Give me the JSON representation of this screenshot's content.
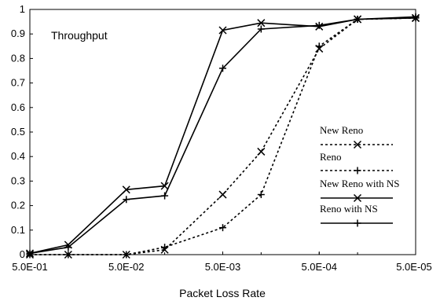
{
  "chart_data": {
    "type": "line",
    "title": "Throughput",
    "xlabel": "Packet Loss Rate",
    "ylabel": "",
    "x_ticks": [
      "5.0E-01",
      "5.0E-02",
      "5.0E-03",
      "5.0E-04",
      "5.0E-05"
    ],
    "y_ticks": [
      "0",
      "0.1",
      "0.2",
      "0.3",
      "0.4",
      "0.5",
      "0.6",
      "0.7",
      "0.8",
      "0.9",
      "1"
    ],
    "x_scale": "log-reversed",
    "ylim": [
      0,
      1
    ],
    "grid": false,
    "legend_position": "right",
    "x": [
      0.5,
      0.2,
      0.05,
      0.02,
      0.005,
      0.002,
      0.0005,
      0.0002,
      5e-05
    ],
    "series": [
      {
        "name": "New Reno",
        "marker": "x",
        "line": "dashed",
        "values": [
          0.0,
          0.0,
          0.0,
          0.02,
          0.245,
          0.42,
          0.84,
          0.96,
          0.965
        ]
      },
      {
        "name": "Reno",
        "marker": "+",
        "line": "dashed",
        "values": [
          0.0,
          0.0,
          0.0,
          0.03,
          0.11,
          0.245,
          0.85,
          0.96,
          0.965
        ]
      },
      {
        "name": "New Reno with NS",
        "marker": "x",
        "line": "solid",
        "values": [
          0.005,
          0.04,
          0.265,
          0.28,
          0.915,
          0.945,
          0.93,
          0.96,
          0.965
        ]
      },
      {
        "name": "Reno with NS",
        "marker": "+",
        "line": "solid",
        "values": [
          0.005,
          0.03,
          0.225,
          0.24,
          0.76,
          0.92,
          0.935,
          0.96,
          0.97
        ]
      }
    ]
  }
}
